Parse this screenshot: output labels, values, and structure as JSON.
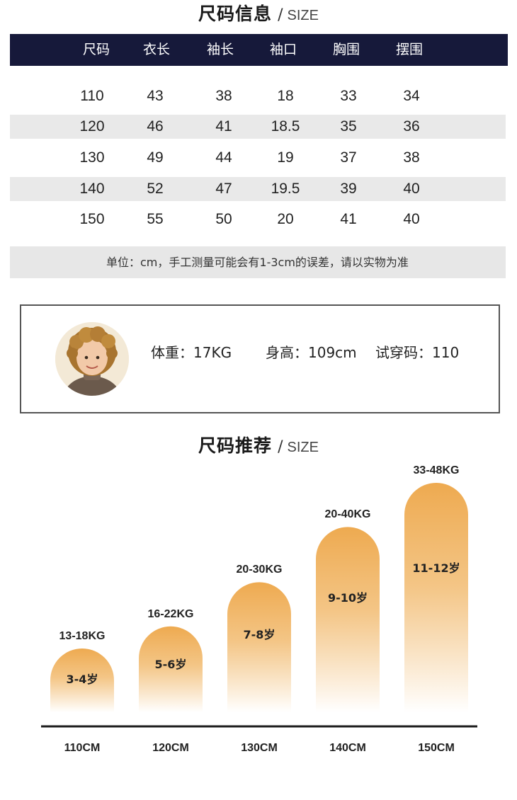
{
  "size_info": {
    "title_cn": "尺码信息",
    "title_en": "SIZE",
    "headers": [
      "尺码",
      "衣长",
      "袖长",
      "袖口",
      "胸围",
      "摆围"
    ],
    "rows": [
      [
        "110",
        "43",
        "38",
        "18",
        "33",
        "34"
      ],
      [
        "120",
        "46",
        "41",
        "18.5",
        "35",
        "36"
      ],
      [
        "130",
        "49",
        "44",
        "19",
        "37",
        "38"
      ],
      [
        "140",
        "52",
        "47",
        "19.5",
        "39",
        "40"
      ],
      [
        "150",
        "55",
        "50",
        "20",
        "41",
        "40"
      ]
    ],
    "note": "单位：cm，手工测量可能会有1-3cm的误差，请以实物为准"
  },
  "fit_model": {
    "weight": "体重：17KG",
    "height": "身高：109cm",
    "try_size": "试穿码：110"
  },
  "recommend": {
    "title_cn": "尺码推荐",
    "title_en": "SIZE",
    "bar_color": "#eeaa50"
  },
  "chart_data": {
    "type": "bar",
    "categories": [
      "110CM",
      "120CM",
      "130CM",
      "140CM",
      "150CM"
    ],
    "weight_labels": [
      "13-18KG",
      "16-22KG",
      "20-30KG",
      "20-40KG",
      "33-48KG"
    ],
    "age_labels": [
      "3-4岁",
      "5-6岁",
      "7-8岁",
      "9-10岁",
      "11-12岁"
    ],
    "values": [
      18,
      22,
      30,
      40,
      48
    ],
    "ylim": [
      0,
      48
    ]
  }
}
